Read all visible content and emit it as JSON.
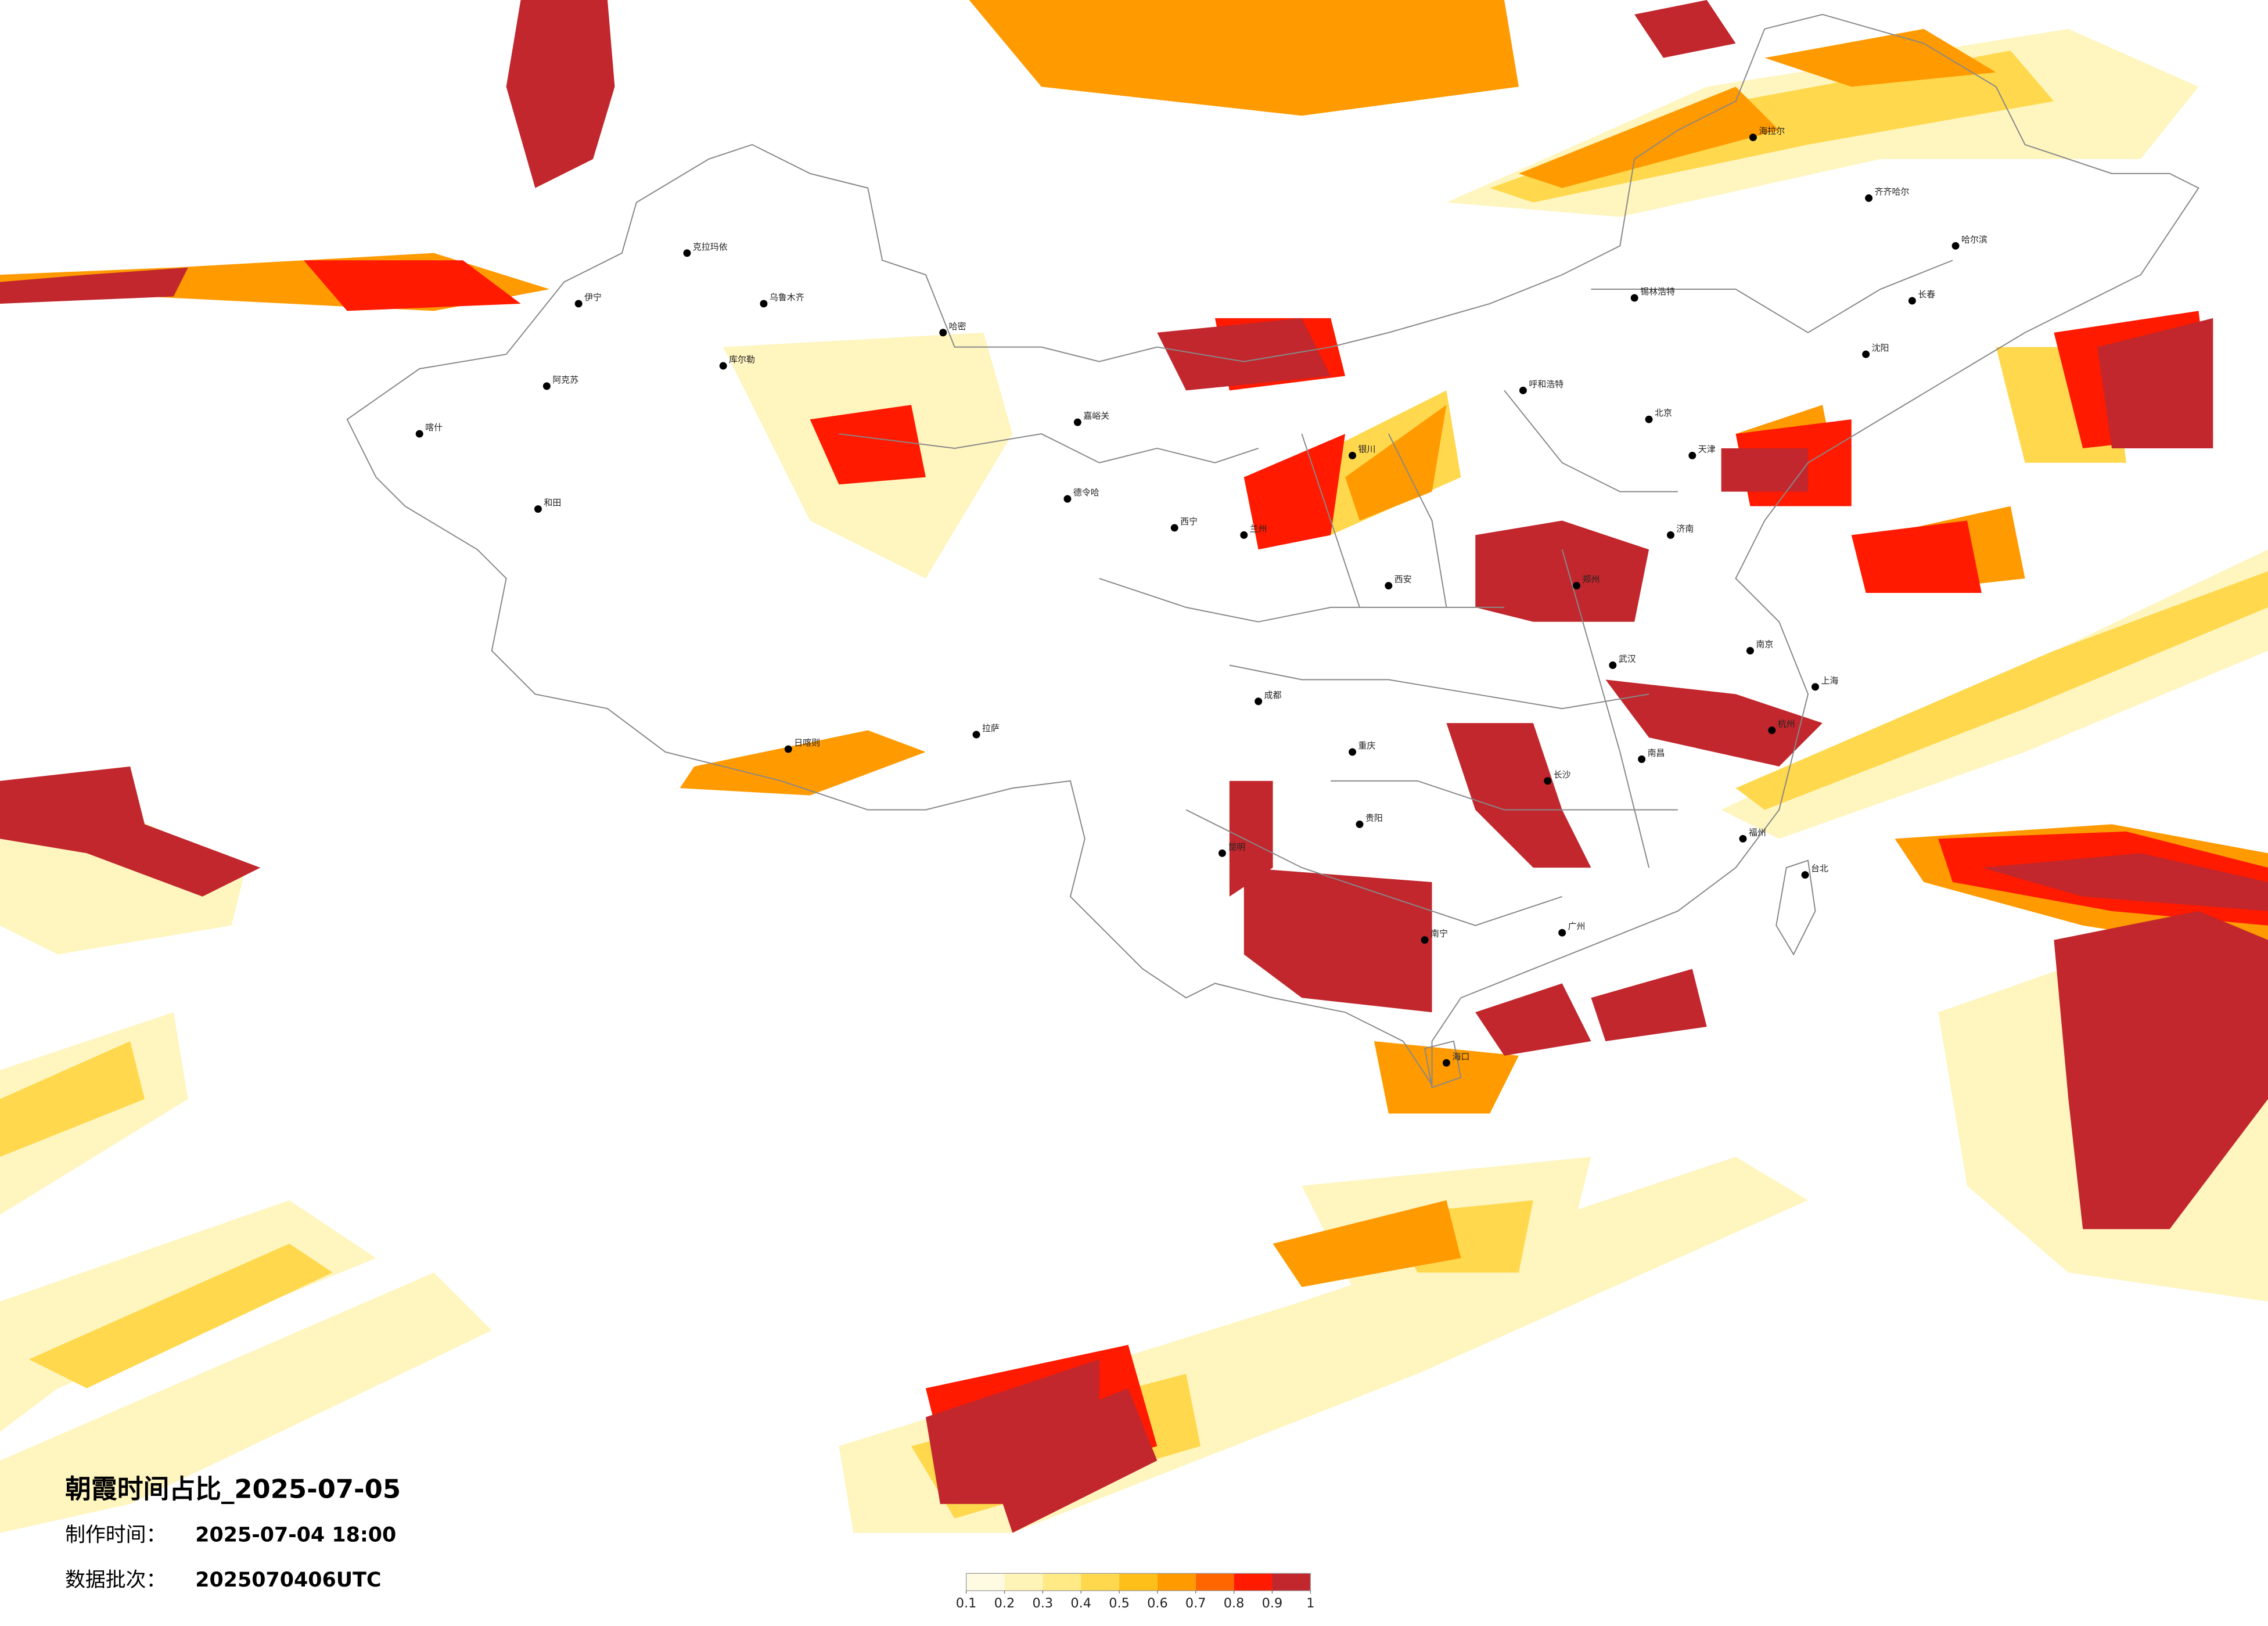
{
  "title": "朝霞时间占比_2025-07-05",
  "made_label": "制作时间：",
  "made_time": "2025-07-04 18:00",
  "batch_label": "数据批次：",
  "batch": "2025070406UTC",
  "legend": {
    "ticks": [
      0.1,
      0.2,
      0.3,
      0.4,
      0.5,
      0.6,
      0.7,
      0.8,
      0.9,
      1
    ],
    "colors": [
      "#fffbe3",
      "#fff4b8",
      "#ffea85",
      "#ffd84d",
      "#ffbf1a",
      "#ff9a00",
      "#ff6600",
      "#ff1a00",
      "#c1272d"
    ]
  },
  "cities": [
    "克拉玛依",
    "乌鲁木齐",
    "伊宁",
    "喀什",
    "和田",
    "库尔勒",
    "阿克苏",
    "哈密",
    "嘉峪关",
    "德令哈",
    "拉萨",
    "日喀则",
    "呼和浩特",
    "锡林浩特",
    "海拉尔",
    "齐齐哈尔",
    "哈尔滨",
    "长春",
    "沈阳",
    "北京",
    "天津",
    "济南",
    "郑州",
    "西安",
    "兰州",
    "西宁",
    "银川",
    "成都",
    "重庆",
    "武汉",
    "南京",
    "上海",
    "杭州",
    "长沙",
    "南昌",
    "福州",
    "台北",
    "广州",
    "南宁",
    "昆明",
    "贵阳",
    "海口"
  ]
}
